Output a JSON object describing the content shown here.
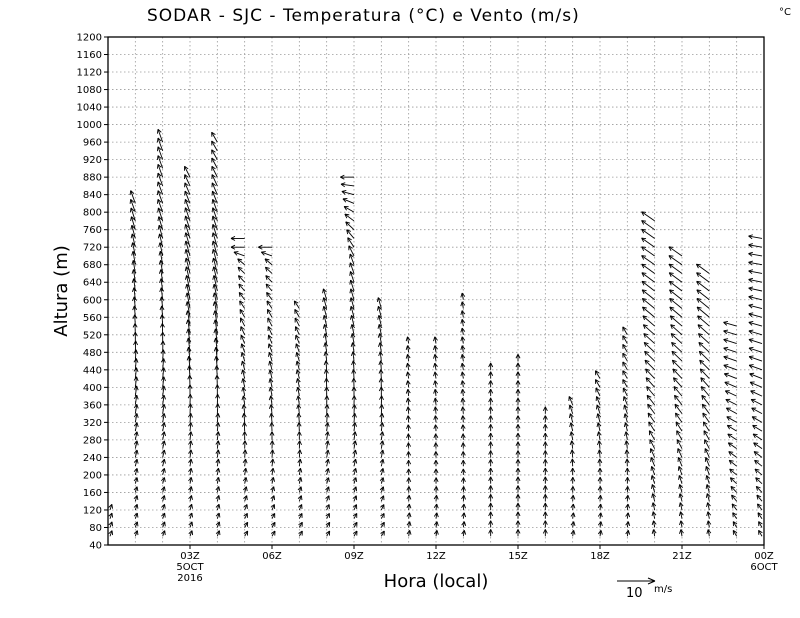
{
  "chart_data": {
    "type": "wind-barb-profile",
    "title": "SODAR - SJC - Temperatura (°C) e Vento (m/s)",
    "unit_corner": "°C",
    "xlabel": "Hora (local)",
    "ylabel": "Altura (m)",
    "ylim": [
      40,
      1200
    ],
    "y_ticks": [
      40,
      80,
      120,
      160,
      200,
      240,
      280,
      320,
      360,
      400,
      440,
      480,
      520,
      560,
      600,
      640,
      680,
      720,
      760,
      800,
      840,
      880,
      920,
      960,
      1000,
      1040,
      1080,
      1120,
      1160,
      1200
    ],
    "xlim": [
      0,
      24
    ],
    "x_ticks": [
      {
        "hour": 3,
        "label": "03Z",
        "sub1": "5OCT",
        "sub2": "2016"
      },
      {
        "hour": 6,
        "label": "06Z",
        "sub1": "",
        "sub2": ""
      },
      {
        "hour": 9,
        "label": "09Z",
        "sub1": "",
        "sub2": ""
      },
      {
        "hour": 12,
        "label": "12Z",
        "sub1": "",
        "sub2": ""
      },
      {
        "hour": 15,
        "label": "15Z",
        "sub1": "",
        "sub2": ""
      },
      {
        "hour": 18,
        "label": "18Z",
        "sub1": "",
        "sub2": ""
      },
      {
        "hour": 21,
        "label": "21Z",
        "sub1": "",
        "sub2": ""
      },
      {
        "hour": 24,
        "label": "00Z",
        "sub1": "6OCT",
        "sub2": ""
      }
    ],
    "reference_vector": {
      "speed": 10,
      "label": "10",
      "unit": "m/s"
    },
    "profile_hours": [
      0,
      1,
      2,
      3,
      4,
      5,
      6,
      7,
      8,
      9,
      10,
      11,
      12,
      13,
      14,
      15,
      16,
      17,
      18,
      19,
      20,
      21,
      22,
      23,
      24
    ],
    "profile_top_m": [
      120,
      820,
      960,
      880,
      960,
      740,
      720,
      580,
      600,
      880,
      590,
      500,
      500,
      600,
      440,
      460,
      340,
      370,
      420,
      520,
      780,
      710,
      660,
      540,
      740
    ],
    "direction_note": "Vectors point toward flow direction; northward (up) at low levels, veering to westward/north-westward aloft; evening profiles show southeasterly (pointing north-west) to westerly flow.",
    "wind_samples": [
      {
        "hour": 1,
        "heights": [
          80,
          200,
          320,
          440,
          560,
          680,
          800
        ],
        "speed": [
          2,
          3,
          4,
          5,
          5,
          6,
          6
        ],
        "toward_deg": [
          20,
          15,
          10,
          5,
          355,
          350,
          340
        ]
      },
      {
        "hour": 3,
        "heights": [
          80,
          200,
          320,
          440,
          560,
          680,
          800,
          920
        ],
        "speed": [
          2,
          3,
          4,
          6,
          7,
          7,
          6,
          5
        ],
        "toward_deg": [
          20,
          10,
          5,
          355,
          350,
          345,
          340,
          330
        ]
      },
      {
        "hour": 6,
        "heights": [
          80,
          200,
          320,
          440,
          560,
          680,
          720
        ],
        "speed": [
          2,
          3,
          4,
          4,
          4,
          4,
          6
        ],
        "toward_deg": [
          30,
          10,
          355,
          345,
          330,
          310,
          270
        ]
      },
      {
        "hour": 9,
        "heights": [
          80,
          200,
          320,
          440,
          560,
          680,
          800,
          880
        ],
        "speed": [
          2,
          3,
          4,
          4,
          5,
          5,
          5,
          6
        ],
        "toward_deg": [
          30,
          15,
          5,
          355,
          345,
          340,
          300,
          270
        ]
      },
      {
        "hour": 12,
        "heights": [
          80,
          200,
          320,
          440
        ],
        "speed": [
          2,
          2,
          3,
          3
        ],
        "toward_deg": [
          10,
          0,
          355,
          350
        ]
      },
      {
        "hour": 15,
        "heights": [
          80,
          200,
          320,
          440
        ],
        "speed": [
          3,
          3,
          3,
          3
        ],
        "toward_deg": [
          0,
          0,
          0,
          0
        ]
      },
      {
        "hour": 18,
        "heights": [
          80,
          200,
          320,
          400
        ],
        "speed": [
          2,
          3,
          4,
          4
        ],
        "toward_deg": [
          10,
          0,
          345,
          330
        ]
      },
      {
        "hour": 21,
        "heights": [
          80,
          200,
          320,
          440,
          560,
          680
        ],
        "speed": [
          3,
          4,
          5,
          6,
          7,
          7
        ],
        "toward_deg": [
          350,
          340,
          325,
          315,
          310,
          305
        ]
      },
      {
        "hour": 23,
        "heights": [
          80,
          200,
          320,
          440,
          560,
          680
        ],
        "speed": [
          3,
          4,
          5,
          6,
          6,
          6
        ],
        "toward_deg": [
          330,
          310,
          300,
          290,
          285,
          280
        ]
      }
    ]
  }
}
